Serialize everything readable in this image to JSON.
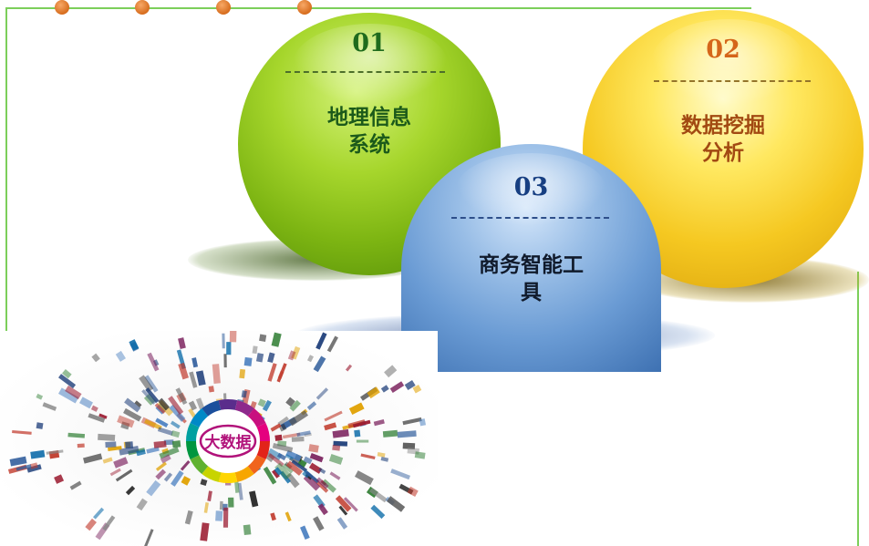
{
  "colors": {
    "frame": "#7ccf5a",
    "dot": "#d76d1e"
  },
  "bubbles": [
    {
      "number": "01",
      "label_line1": "地理信息",
      "label_line2": "系统"
    },
    {
      "number": "02",
      "label_line1": "数据挖掘",
      "label_line2": "分析"
    },
    {
      "number": "03",
      "label_line1": "商务智能工",
      "label_line2": "具"
    }
  ],
  "illustration": {
    "center_label": "大数据"
  }
}
